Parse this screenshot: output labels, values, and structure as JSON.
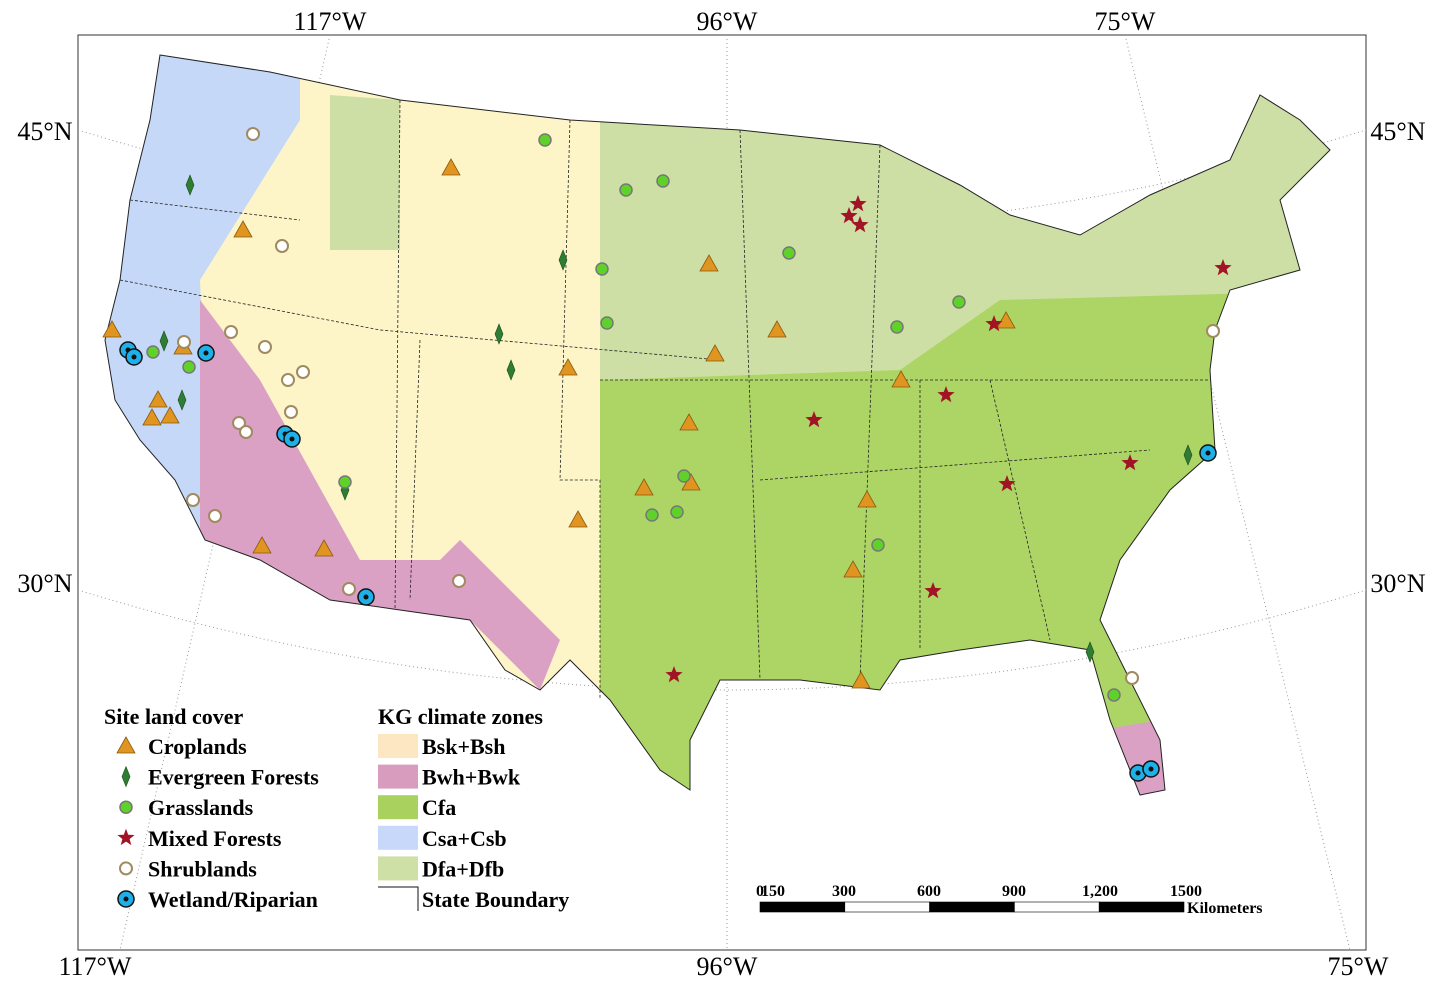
{
  "graticule": {
    "top": [
      "117°W",
      "96°W",
      "75°W"
    ],
    "bottom": [
      "117°W",
      "96°W",
      "75°W"
    ],
    "left": [
      "45°N",
      "30°N"
    ],
    "right": [
      "45°N",
      "30°N"
    ]
  },
  "legend_land_cover": {
    "title": "Site land cover",
    "items": [
      "Croplands",
      "Evergreen Forests",
      "Grasslands",
      "Mixed Forests",
      "Shrublands",
      "Wetland/Riparian"
    ]
  },
  "legend_climate": {
    "title": "KG climate zones",
    "items": [
      "Bsk+Bsh",
      "Bwh+Bwk",
      "Cfa",
      "Csa+Csb",
      "Dfa+Dfb",
      "State Boundary"
    ]
  },
  "scale_bar": {
    "labels": [
      "0",
      "150",
      "300",
      "600",
      "900",
      "1,200",
      "1500"
    ],
    "unit": "Kilometers"
  }
}
